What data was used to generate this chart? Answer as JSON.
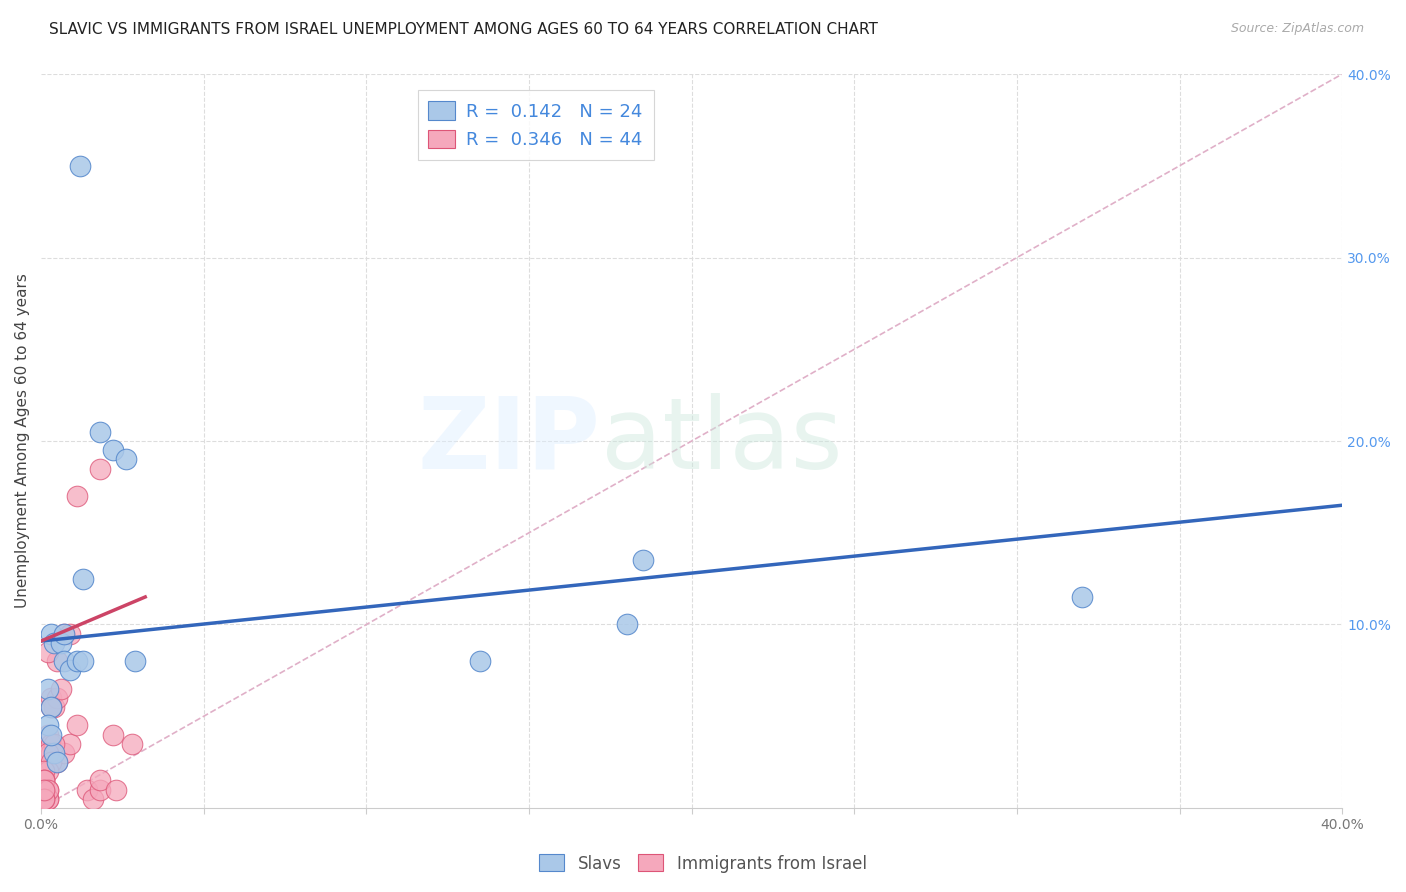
{
  "title": "SLAVIC VS IMMIGRANTS FROM ISRAEL UNEMPLOYMENT AMONG AGES 60 TO 64 YEARS CORRELATION CHART",
  "source": "Source: ZipAtlas.com",
  "ylabel": "Unemployment Among Ages 60 to 64 years",
  "xlim": [
    0.0,
    0.4
  ],
  "ylim": [
    0.0,
    0.4
  ],
  "right_ytick_labels": [
    "",
    "10.0%",
    "20.0%",
    "30.0%",
    "40.0%"
  ],
  "right_ytick_positions": [
    0.0,
    0.1,
    0.2,
    0.3,
    0.4
  ],
  "slavs_R": 0.142,
  "slavs_N": 24,
  "israel_R": 0.346,
  "israel_N": 44,
  "slavs_color": "#aac8e8",
  "israel_color": "#f5a8bc",
  "slavs_edge_color": "#5588cc",
  "israel_edge_color": "#dd5577",
  "slavs_line_color": "#3366bb",
  "israel_line_color": "#cc4466",
  "diagonal_color": "#e0b0c8",
  "background_color": "#ffffff",
  "grid_color": "#dddddd",
  "slavs_x": [
    0.012,
    0.018,
    0.022,
    0.026,
    0.003,
    0.004,
    0.006,
    0.007,
    0.002,
    0.003,
    0.004,
    0.005,
    0.007,
    0.009,
    0.011,
    0.013,
    0.029,
    0.185,
    0.32,
    0.002,
    0.003,
    0.013,
    0.18,
    0.135
  ],
  "slavs_y": [
    0.35,
    0.205,
    0.195,
    0.19,
    0.095,
    0.09,
    0.09,
    0.095,
    0.065,
    0.055,
    0.03,
    0.025,
    0.08,
    0.075,
    0.08,
    0.125,
    0.08,
    0.135,
    0.115,
    0.045,
    0.04,
    0.08,
    0.1,
    0.08
  ],
  "israel_x": [
    0.018,
    0.011,
    0.007,
    0.009,
    0.005,
    0.003,
    0.004,
    0.005,
    0.006,
    0.002,
    0.003,
    0.003,
    0.004,
    0.005,
    0.007,
    0.009,
    0.011,
    0.014,
    0.016,
    0.018,
    0.022,
    0.028,
    0.002,
    0.003,
    0.004,
    0.002,
    0.003,
    0.002,
    0.001,
    0.001,
    0.002,
    0.001,
    0.001,
    0.001,
    0.002,
    0.002,
    0.001,
    0.001,
    0.002,
    0.018,
    0.023,
    0.001,
    0.001,
    0.001
  ],
  "israel_y": [
    0.185,
    0.17,
    0.095,
    0.095,
    0.08,
    0.06,
    0.055,
    0.06,
    0.065,
    0.04,
    0.035,
    0.03,
    0.025,
    0.025,
    0.03,
    0.035,
    0.045,
    0.01,
    0.005,
    0.01,
    0.04,
    0.035,
    0.085,
    0.055,
    0.035,
    0.03,
    0.025,
    0.02,
    0.015,
    0.01,
    0.01,
    0.02,
    0.015,
    0.01,
    0.005,
    0.005,
    0.01,
    0.015,
    0.01,
    0.015,
    0.01,
    0.005,
    0.005,
    0.01
  ],
  "slavs_line_x0": 0.0,
  "slavs_line_y0": 0.091,
  "slavs_line_x1": 0.4,
  "slavs_line_y1": 0.165,
  "israel_line_x0": 0.0,
  "israel_line_y0": 0.091,
  "israel_line_x1": 0.032,
  "israel_line_y1": 0.115,
  "title_fontsize": 11,
  "axis_label_fontsize": 11,
  "tick_fontsize": 10,
  "legend_fontsize": 13
}
